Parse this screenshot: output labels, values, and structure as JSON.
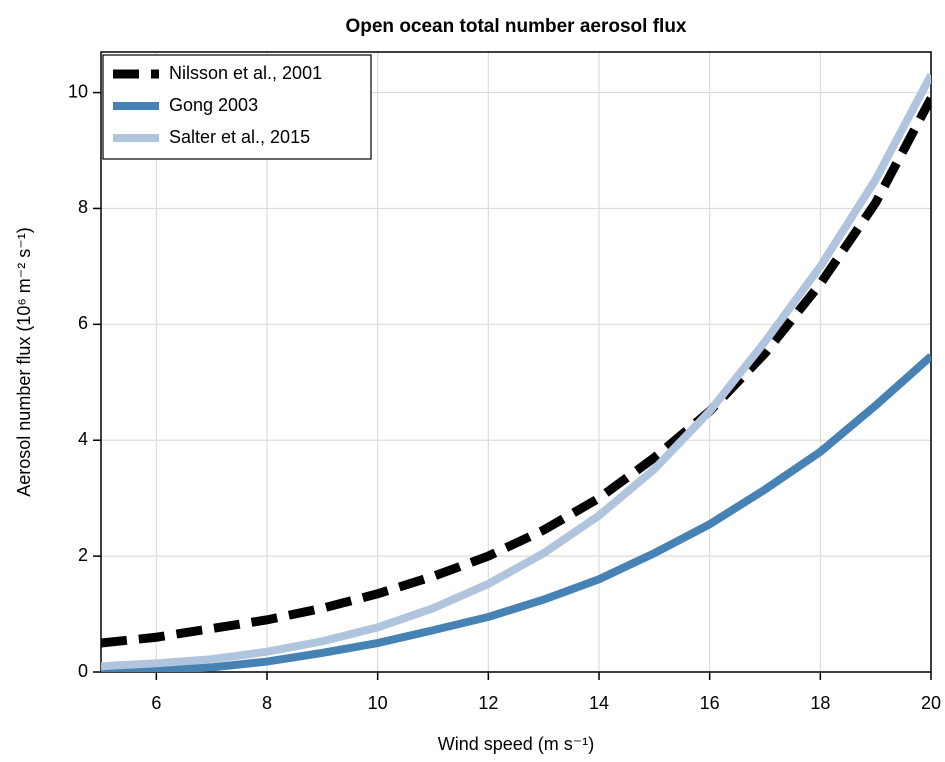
{
  "chart_data": {
    "type": "line",
    "title": "Open ocean total number aerosol flux",
    "xlabel": "Wind speed (m s⁻¹)",
    "ylabel": "Aerosol number flux (10⁶ m⁻² s⁻¹)",
    "x": [
      5,
      6,
      7,
      8,
      9,
      10,
      11,
      12,
      13,
      14,
      15,
      16,
      17,
      18,
      19,
      20
    ],
    "series": [
      {
        "name": "Nilsson et al., 2001",
        "color": "#000000",
        "dashed": true,
        "values": [
          0.5,
          0.6,
          0.75,
          0.9,
          1.1,
          1.35,
          1.65,
          2.0,
          2.45,
          3.0,
          3.7,
          4.5,
          5.5,
          6.7,
          8.1,
          9.9
        ]
      },
      {
        "name": "Gong 2003",
        "color": "#4682b4",
        "dashed": false,
        "values": [
          0.0,
          0.03,
          0.08,
          0.18,
          0.33,
          0.5,
          0.72,
          0.95,
          1.25,
          1.6,
          2.05,
          2.55,
          3.15,
          3.8,
          4.6,
          5.45
        ]
      },
      {
        "name": "Salter et al., 2015",
        "color": "#b0c4de",
        "dashed": false,
        "values": [
          0.1,
          0.15,
          0.22,
          0.35,
          0.53,
          0.77,
          1.1,
          1.52,
          2.05,
          2.7,
          3.5,
          4.5,
          5.7,
          7.0,
          8.5,
          10.3
        ]
      }
    ],
    "xlim": [
      5,
      20
    ],
    "xticks": [
      6,
      8,
      10,
      12,
      14,
      16,
      18,
      20
    ],
    "ylim": [
      0,
      10.7
    ],
    "yticks": [
      0,
      2,
      4,
      6,
      8,
      10
    ],
    "grid": true,
    "legend": "upper left"
  }
}
